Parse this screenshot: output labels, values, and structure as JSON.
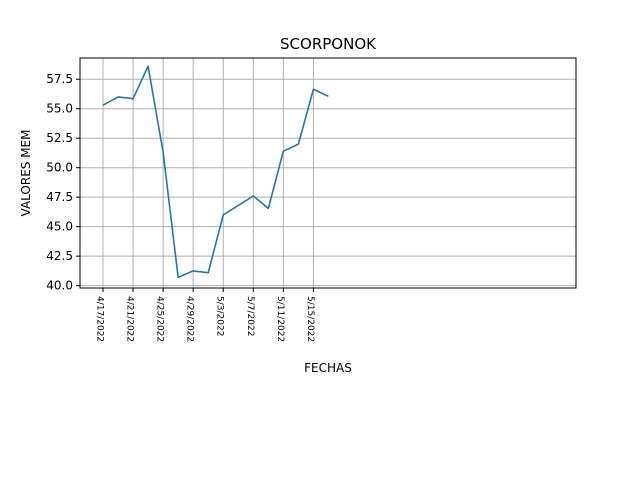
{
  "chart_data": {
    "type": "line",
    "title": "SCORPONOK",
    "xlabel": "FECHAS",
    "ylabel": "VALORES MEM",
    "x": [
      "4/17/2022",
      "4/19/2022",
      "4/21/2022",
      "4/23/2022",
      "4/25/2022",
      "4/27/2022",
      "4/29/2022",
      "5/1/2022",
      "5/3/2022",
      "5/5/2022",
      "5/7/2022",
      "5/9/2022",
      "5/11/2022",
      "5/13/2022",
      "5/15/2022",
      "5/17/2022"
    ],
    "x_tick_labels": [
      "4/17/2022",
      "4/21/2022",
      "4/25/2022",
      "4/29/2022",
      "5/3/2022",
      "5/7/2022",
      "5/11/2022",
      "5/15/2022"
    ],
    "y_ticks": [
      "40.0",
      "42.5",
      "45.0",
      "47.5",
      "50.0",
      "52.5",
      "55.0",
      "57.5"
    ],
    "ylim": [
      39.8,
      59.3
    ],
    "grid": true,
    "series": [
      {
        "values": [
          55.3,
          56.0,
          55.85,
          58.6,
          51.3,
          40.7,
          41.25,
          41.1,
          46.0,
          46.8,
          47.6,
          46.55,
          51.4,
          52.0,
          56.65,
          56.05
        ],
        "color": "#1f77b4"
      }
    ]
  }
}
